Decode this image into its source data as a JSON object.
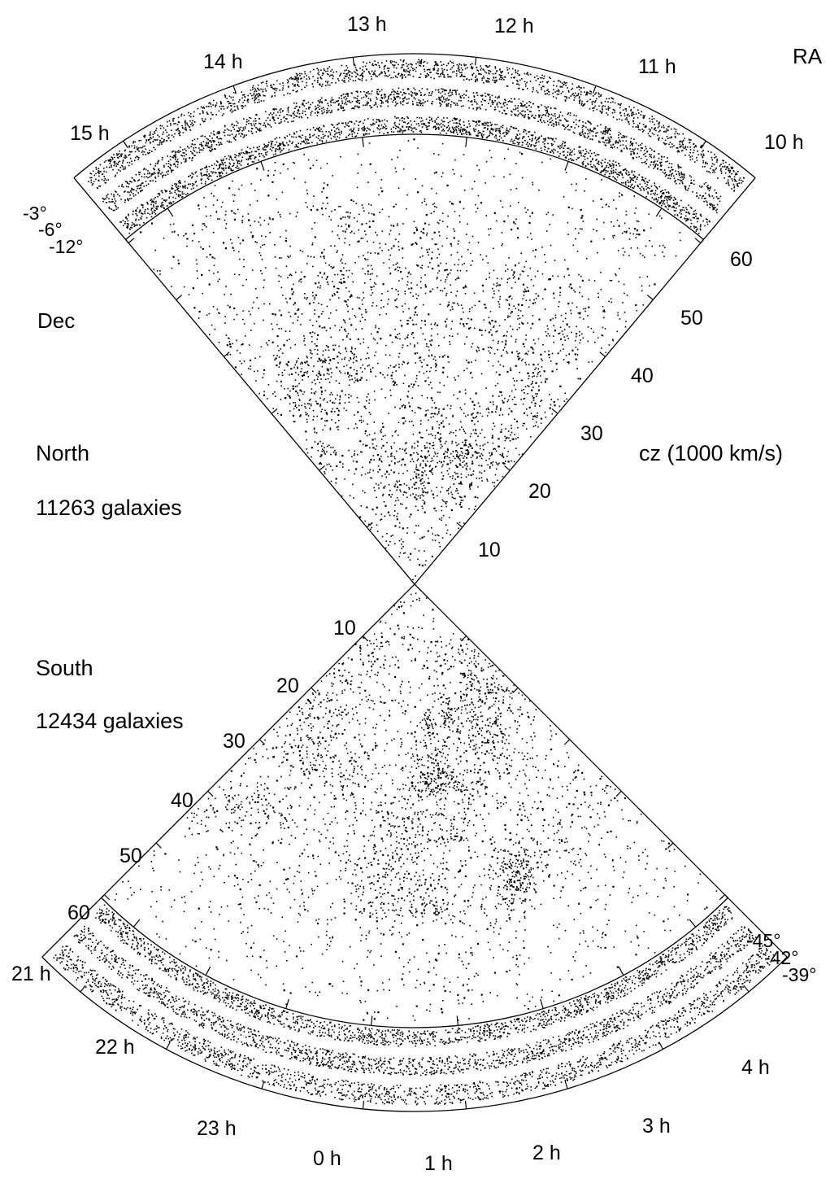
{
  "chart_data": {
    "type": "scatter",
    "title": "",
    "xlabel": "RA",
    "ylabel": "Dec",
    "radial_axis_label": "cz (1000 km/s)",
    "colors": {
      "background": "#ffffff",
      "points": "#000000",
      "frame": "#000000"
    },
    "panels": [
      {
        "name": "North",
        "count_label": "11263 galaxies",
        "radial_ticks": [
          "10",
          "20",
          "30",
          "40",
          "50",
          "60"
        ],
        "ra_ticks": [
          "10 h",
          "11 h",
          "12 h",
          "13 h",
          "14 h",
          "15 h"
        ],
        "dec_strips": [
          "-3°",
          "-6°",
          "-12°"
        ],
        "galaxy_count": 11263
      },
      {
        "name": "South",
        "count_label": "12434 galaxies",
        "radial_ticks": [
          "10",
          "20",
          "30",
          "40",
          "50",
          "60"
        ],
        "ra_ticks": [
          "21 h",
          "22 h",
          "23 h",
          "0 h",
          "1 h",
          "2 h",
          "3 h",
          "4 h"
        ],
        "dec_strips": [
          "-45°",
          "-42°",
          "-39°"
        ],
        "galaxy_count": 12434
      }
    ]
  }
}
